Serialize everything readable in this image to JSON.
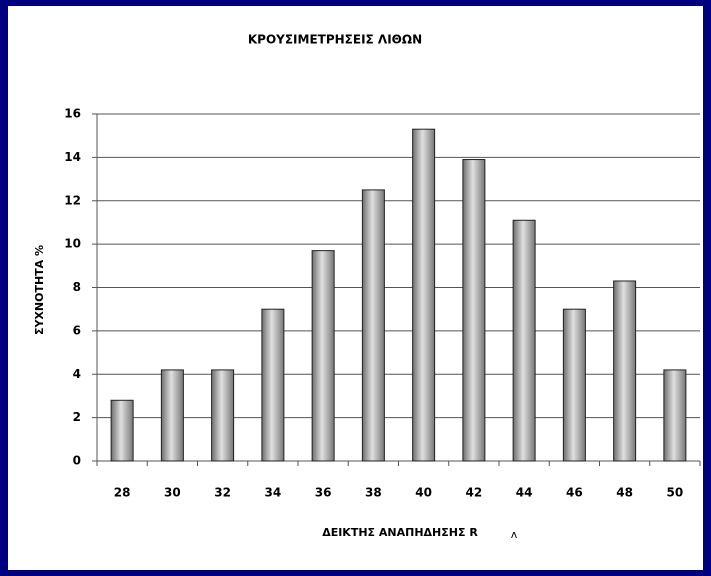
{
  "chart_data": {
    "type": "bar",
    "title": "ΚΡΟΥΣΙΜΕΤΡΗΣΕΙΣ ΛΙΘΩΝ",
    "x_label": "ΔΕΙΚΤΗΣ ΑΝΑΠΗΔΗΣΗΣ R",
    "x_label_mark": "ʌ",
    "y_label": "ΣΥΧΝΟΤΗΤΑ %",
    "categories": [
      "28",
      "30",
      "32",
      "34",
      "36",
      "38",
      "40",
      "42",
      "44",
      "46",
      "48",
      "50"
    ],
    "values": [
      2.8,
      4.2,
      4.2,
      7.0,
      9.7,
      12.5,
      15.3,
      13.9,
      11.1,
      7.0,
      8.3,
      4.2
    ],
    "color": "#a0a0a0",
    "ylim": [
      0,
      16
    ],
    "yticks": [
      0,
      2,
      4,
      6,
      8,
      10,
      12,
      14,
      16
    ],
    "grid": true
  }
}
